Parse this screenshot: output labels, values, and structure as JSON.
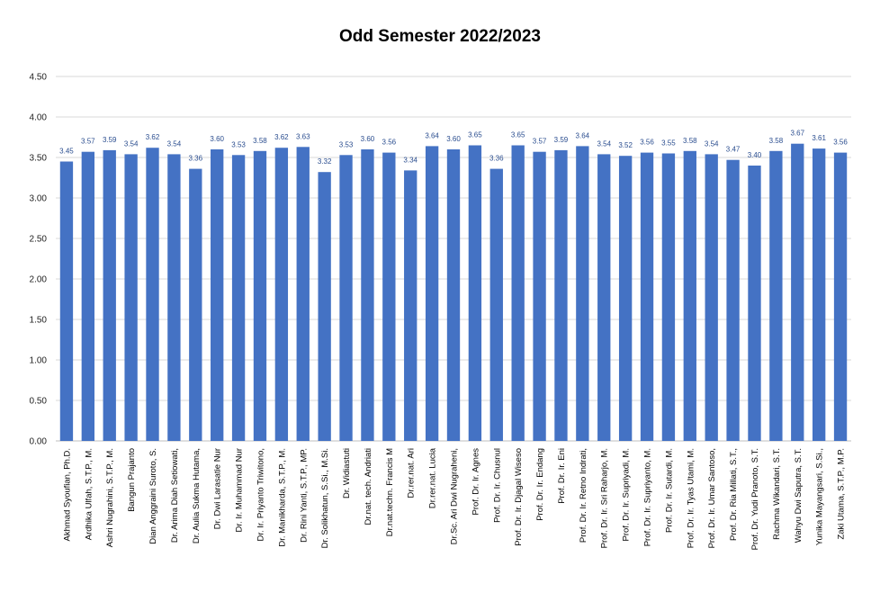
{
  "chart_data": {
    "type": "bar",
    "title": "Odd Semester 2022/2023",
    "xlabel": "",
    "ylabel": "",
    "ylim": [
      0,
      4.5
    ],
    "yticks": [
      "0.00",
      "0.50",
      "1.00",
      "1.50",
      "2.00",
      "2.50",
      "3.00",
      "3.50",
      "4.00",
      "4.50"
    ],
    "grid": true,
    "legend": "none",
    "bar_color": "#4472C4",
    "categories": [
      "Akhmad Syoufian, Ph.D.",
      "Ardhika Ulfah, S.T.P., M.",
      "Ashri Nugrahini, S.T.P., M.",
      "Bangun Prajanto",
      "Dian Anggraini Suroto, S.",
      "Dr. Arima Diah Setiowati,",
      "Dr. Aulia Sukma Hutama,",
      "Dr. Dwi Larasatie Nur",
      "Dr. Ir. Muhammad Nur",
      "Dr. Ir. Priyanto Triwitono,",
      "Dr. Manikharda, S.T.P., M.",
      "Dr. Rini Yanti, S.T.P., MP.",
      "Dr. Solikhatun, S.Si., M.Si.",
      "Dr. Widiastuti",
      "Dr.nat. tech. Andriati",
      "Dr.nat.techn. Francis M",
      "Dr.rer.nat. Ari",
      "Dr.rer.nat. Lucia",
      "Dr.Sc. Ari Dwi Nugraheni,",
      "Prof. Dr. Ir. Agnes",
      "Prof. Dr. Ir. Chusnul",
      "Prof. Dr. Ir. Djagal Wiseso",
      "Prof. Dr. Ir. Endang",
      "Prof. Dr. Ir. Eni",
      "Prof. Dr. Ir. Retno Indrati,",
      "Prof. Dr. Ir. Sri Raharjo, M.",
      "Prof. Dr. Ir. Supriyadi, M.",
      "Prof. Dr. Ir. Supriyanto, M.",
      "Prof. Dr. Ir. Sutardi, M.",
      "Prof. Dr. Ir. Tyas Utami, M.",
      "Prof. Dr. Ir. Umar Santoso,",
      "Prof. Dr. Ria Millati, S.T.,",
      "Prof. Dr. Yudi Pranoto, S.T.",
      "Rachma Wikandari, S.T.",
      "Wahyu Dwi Saputra, S.T.",
      "Yunika Mayangsari, S.Si.,",
      "Zaki Utama, S.T.P., M.P."
    ],
    "values": [
      3.45,
      3.57,
      3.59,
      3.54,
      3.62,
      3.54,
      3.36,
      3.6,
      3.53,
      3.58,
      3.62,
      3.63,
      3.32,
      3.53,
      3.6,
      3.56,
      3.34,
      3.64,
      3.6,
      3.65,
      3.36,
      3.65,
      3.57,
      3.59,
      3.64,
      3.54,
      3.52,
      3.56,
      3.55,
      3.58,
      3.54,
      3.47,
      3.4,
      3.58,
      3.67,
      3.61,
      3.56
    ],
    "labels": [
      "3.45",
      "3.57",
      "3.59",
      "3.54",
      "3.62",
      "3.54",
      "3.36",
      "3.60",
      "3.53",
      "3.58",
      "3.62",
      "3.63",
      "3.32",
      "3.53",
      "3.60",
      "3.56",
      "3.34",
      "3.64",
      "3.60",
      "3.65",
      "3.36",
      "3.65",
      "3.57",
      "3.59",
      "3.64",
      "3.54",
      "3.52",
      "3.56",
      "3.55",
      "3.58",
      "3.54",
      "3.47",
      "3.40",
      "3.58",
      "3.67",
      "3.61",
      "3.56"
    ]
  }
}
